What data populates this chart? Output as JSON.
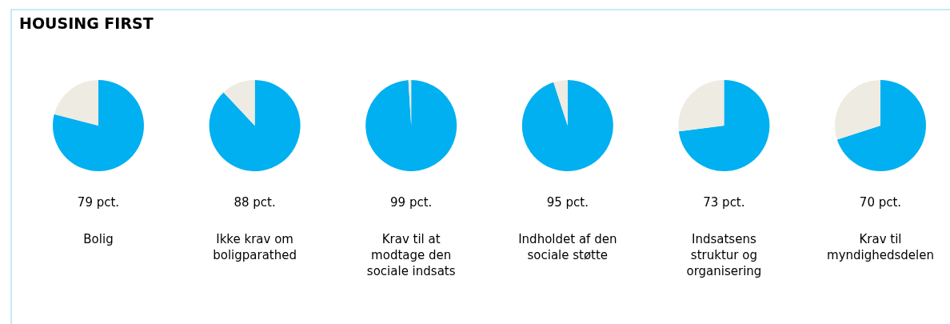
{
  "chart_data": [
    {
      "type": "other",
      "title": "HOUSING FIRST"
    },
    {
      "type": "pie",
      "title": "Bolig",
      "categories": [
        null,
        null
      ],
      "values": [
        79,
        21
      ],
      "colors": [
        "#00b0f0",
        "#eeebe2"
      ],
      "value_labels": [
        "79 pct.",
        null
      ]
    },
    {
      "type": "pie",
      "title": "Ikke krav om boligparathed",
      "categories": [
        null,
        null
      ],
      "values": [
        88,
        12
      ],
      "colors": [
        "#00b0f0",
        "#eeebe2"
      ],
      "value_labels": [
        "88 pct.",
        null
      ]
    },
    {
      "type": "pie",
      "title": "Krav til at modtage den sociale indsats",
      "categories": [
        null,
        null
      ],
      "values": [
        99,
        1
      ],
      "colors": [
        "#00b0f0",
        "#eeebe2"
      ],
      "value_labels": [
        "99 pct.",
        null
      ]
    },
    {
      "type": "pie",
      "title": "Indholdet af den sociale støtte",
      "categories": [
        null,
        null
      ],
      "values": [
        95,
        5
      ],
      "colors": [
        "#00b0f0",
        "#eeebe2"
      ],
      "value_labels": [
        "95 pct.",
        null
      ]
    },
    {
      "type": "pie",
      "title": "Indsatsens struktur og organisering",
      "categories": [
        null,
        null
      ],
      "values": [
        73,
        27
      ],
      "colors": [
        "#00b0f0",
        "#eeebe2"
      ],
      "value_labels": [
        "73 pct.",
        null
      ]
    },
    {
      "type": "pie",
      "title": "Krav til myndighedsdelen",
      "categories": [
        null,
        null
      ],
      "values": [
        70,
        30
      ],
      "colors": [
        "#00b0f0",
        "#eeebe2"
      ],
      "value_labels": [
        "70 pct.",
        null
      ]
    }
  ]
}
